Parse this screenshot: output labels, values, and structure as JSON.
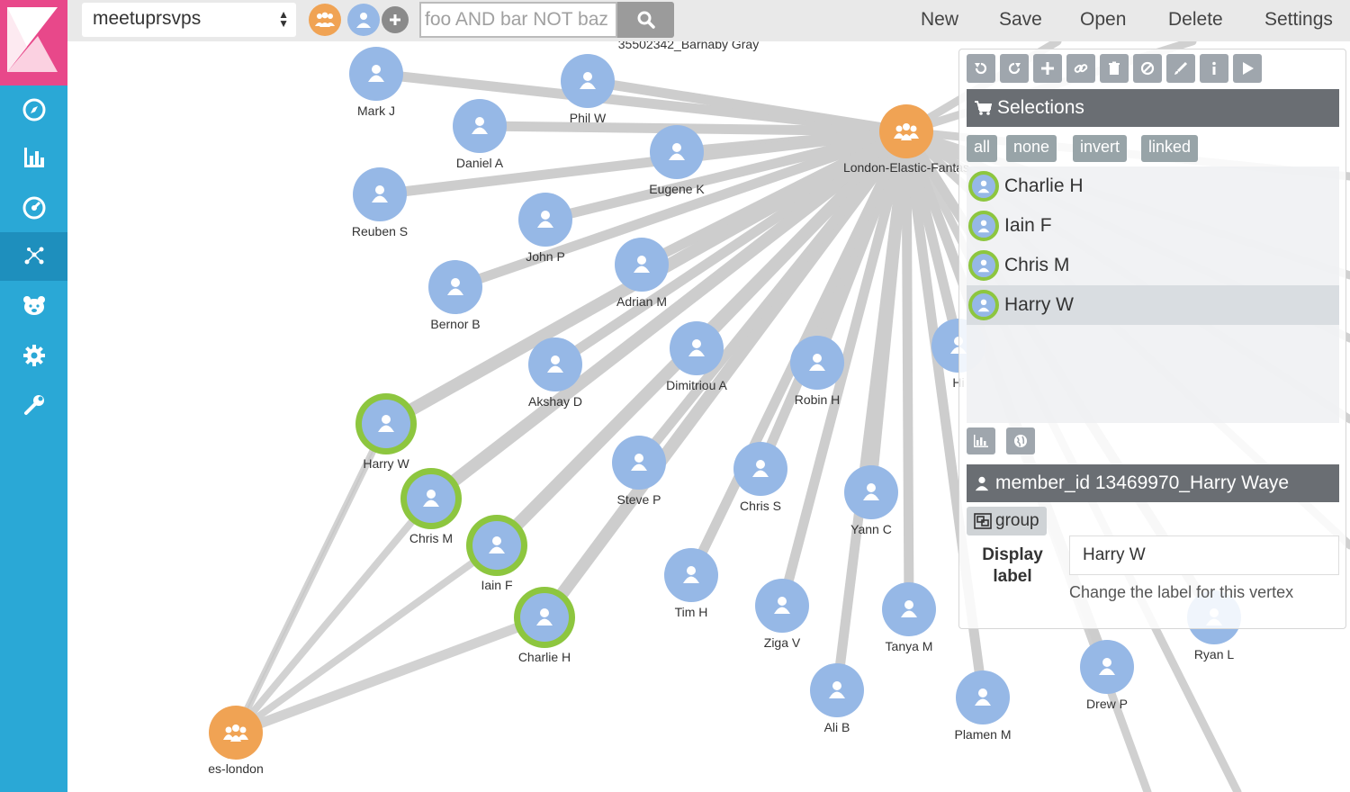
{
  "topbar": {
    "index_name": "meetuprsvps",
    "search_placeholder": "foo AND bar NOT baz",
    "menu": [
      "New",
      "Save",
      "Open",
      "Delete",
      "Settings"
    ]
  },
  "colors": {
    "accent_pink": "#e8488a",
    "nav_blue": "#2aa8d6",
    "person_node": "#96b8e6",
    "group_node": "#f0a354",
    "selected_ring": "#8dc63f"
  },
  "leftnav": {
    "icons": [
      "discover-icon",
      "visualize-icon",
      "dashboard-icon",
      "graph-icon",
      "devtools-icon",
      "settings-icon",
      "wrench-icon"
    ]
  },
  "graph": {
    "persons": [
      "Mark J",
      "Phil W",
      "Daniel A",
      "Eugene K",
      "Reuben S",
      "John P",
      "Bernor B",
      "Adrian M",
      "Akshay D",
      "Dimitriou A",
      "Robin H",
      "Harry W",
      "Chris M",
      "Iain F",
      "Charlie H",
      "Steve P",
      "Chris S",
      "Yann C",
      "Tim H",
      "Ziga V",
      "Tanya M",
      "Ali B",
      "Plamen M",
      "Drew P",
      "Ryan L",
      "Hi"
    ],
    "groups": [
      "London-Elastic-Fantas",
      "es-london"
    ],
    "partial_labels": [
      "35502342_Barnaby Gray"
    ]
  },
  "panel": {
    "selections_title": "Selections",
    "select_buttons": [
      "all",
      "none",
      "invert",
      "linked"
    ],
    "selected_items": [
      "Charlie H",
      "Iain F",
      "Chris M",
      "Harry W"
    ],
    "vertex_title": "member_id 13469970_Harry Waye",
    "group_label": "group",
    "display_label": "Display label",
    "label_value": "Harry W",
    "label_help": "Change the label for this vertex"
  }
}
